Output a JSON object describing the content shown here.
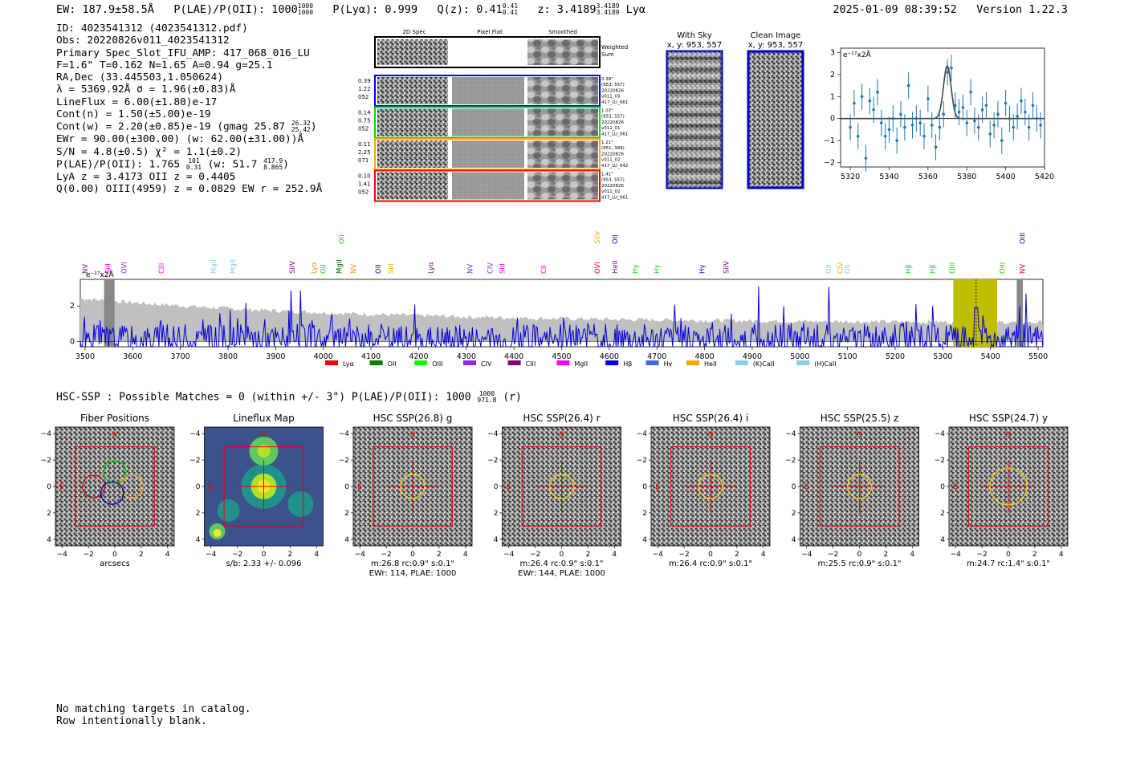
{
  "header": {
    "ew": "EW: 187.9±58.5Å",
    "plae": "P(LAE)/P(OII): 1000",
    "plae_hi": "1000",
    "plae_lo": "1000",
    "plya": "P(Lyα): 0.999",
    "qz": "Q(z): 0.41",
    "qz_hi": "0.41",
    "qz_lo": "0.41",
    "z": "z: 3.4189",
    "z_hi": "3.4189",
    "z_lo": "3.4189",
    "z_line": "Lyα",
    "timestamp": "2025-01-09 08:39:52",
    "version": "Version 1.22.3"
  },
  "info": {
    "id": "ID: 4023541312 (4023541312.pdf)",
    "obs": "Obs: 20220826v011_4023541312",
    "primary": "Primary Spec_Slot_IFU_AMP: 417_068_016_LU",
    "params": "F=1.6\"  T=0.162  N=1.65  A=0.94  g=25.1",
    "radec": "RA,Dec (33.445503,1.050624)",
    "lambda": "λ = 5369.92Å  σ = 1.96(±0.83)Å",
    "lineflux": "LineFlux = 6.00(±1.80)e-17",
    "contn": "Cont(n) = 1.50(±5.00)e-19",
    "contw": "Cont(w) = 2.20(±0.85)e-19 (gmag 25.87",
    "contw_hi": "26.32",
    "contw_lo": "25.42",
    "contw_end": ")",
    "ewr": "EWr = 90.00(±300.00) (w: 62.00(±31.00))Å",
    "sn": "S/N = 4.8(±0.5)  χ² = 1.1(±0.2)",
    "plae": "P(LAE)/P(OII): 1.765",
    "plae_hi": "101",
    "plae_lo": "0.31",
    "plae_w": "(w: 51.7",
    "plae_w_hi": "417.9",
    "plae_w_lo": "8.865",
    "plae_end": ")",
    "lya": "LyA z = 3.4173  OII z = 0.4405",
    "q": "Q(0.00) OIII(4959) z = 0.0829  EW r = 252.9Å"
  },
  "cutouts": {
    "col_headers": [
      "2D Spec",
      "Pixel Flat",
      "Smoothed"
    ],
    "weighted_label": "Weighted\nSum",
    "rows": [
      {
        "left": [
          "0.39",
          "1.22",
          "052"
        ],
        "right": [
          "0.38\"",
          "(953, 557)",
          "20220826",
          "v011_03",
          "417_LU_061"
        ],
        "color": "#0000ff"
      },
      {
        "left": [
          "0.14",
          "0.75",
          "052"
        ],
        "right": [
          "1.07\"",
          "(953, 557)",
          "20220826",
          "v011_01",
          "417_LU_061"
        ],
        "color": "#00dd00"
      },
      {
        "left": [
          "0.11",
          "2.25",
          "071"
        ],
        "right": [
          "1.21\"",
          "(951, 389)",
          "20220826",
          "v011_02",
          "417_LU_042"
        ],
        "color": "#ffa500"
      },
      {
        "left": [
          "0.10",
          "1.41",
          "052"
        ],
        "right": [
          "1.41\"",
          "(953, 557)",
          "20220826",
          "v011_02",
          "417_LU_061"
        ],
        "color": "#ff0000"
      }
    ]
  },
  "sky_panels": {
    "with_sky_title": "With Sky",
    "with_sky_coords": "x, y: 953, 557",
    "clean_title": "Clean Image",
    "clean_coords": "x, y: 953, 557"
  },
  "zoom_spec": {
    "unit_label": "e⁻¹⁷x2Å",
    "x_ticks": [
      "5320",
      "5340",
      "5360",
      "5380",
      "5400",
      "5420"
    ],
    "y_ticks": [
      "3",
      "2",
      "1",
      "0",
      "−1",
      "−2"
    ]
  },
  "full_spec": {
    "unit_label": "e⁻¹⁷x2Å",
    "x_ticks": [
      "3500",
      "3600",
      "3700",
      "3800",
      "3900",
      "4000",
      "4100",
      "4200",
      "4300",
      "4400",
      "4500",
      "4600",
      "4700",
      "4800",
      "4900",
      "5000",
      "5100",
      "5200",
      "5300",
      "5400",
      "5500"
    ],
    "y_ticks": [
      "2",
      "0"
    ],
    "line_labels": [
      {
        "t": "NV",
        "x": 3500,
        "c": "#8b008b",
        "up": false
      },
      {
        "t": "SiII",
        "x": 3548,
        "c": "#ff00ff",
        "up": false
      },
      {
        "t": "OVI",
        "x": 3582,
        "c": "#8a2be2",
        "up": false
      },
      {
        "t": "CIII",
        "x": 3660,
        "c": "#ff00ff",
        "up": false
      },
      {
        "t": "MgII",
        "x": 3770,
        "c": "#87ceeb",
        "up": false
      },
      {
        "t": "MgII",
        "x": 3810,
        "c": "#87ceeb",
        "up": false
      },
      {
        "t": "SiIV",
        "x": 3935,
        "c": "#8b008b",
        "up": false
      },
      {
        "t": "Lyα",
        "x": 3980,
        "c": "#ff8c00",
        "up": false
      },
      {
        "t": "OII",
        "x": 4000,
        "c": "#00cc00",
        "up": false
      },
      {
        "t": "MgII",
        "x": 4033,
        "c": "#006400",
        "up": false
      },
      {
        "t": "OII",
        "x": 4038,
        "c": "#00dd00",
        "up": true
      },
      {
        "t": "NV",
        "x": 4063,
        "c": "#ff8c00",
        "up": false
      },
      {
        "t": "OII",
        "x": 4115,
        "c": "#0000ff",
        "up": false
      },
      {
        "t": "SiII",
        "x": 4142,
        "c": "#ffa500",
        "up": false
      },
      {
        "t": "Lyα",
        "x": 4225,
        "c": "#8b008b",
        "up": false
      },
      {
        "t": "NV",
        "x": 4308,
        "c": "#8a2be2",
        "up": false
      },
      {
        "t": "CIV",
        "x": 4350,
        "c": "#8a2be2",
        "up": false
      },
      {
        "t": "SiII",
        "x": 4375,
        "c": "#ff00ff",
        "up": false
      },
      {
        "t": "CII",
        "x": 4462,
        "c": "#ff00ff",
        "up": false
      },
      {
        "t": "SiIV",
        "x": 4575,
        "c": "#ffa500",
        "up": true
      },
      {
        "t": "OVI",
        "x": 4575,
        "c": "#ff0000",
        "up": false
      },
      {
        "t": "OII",
        "x": 4612,
        "c": "#0000ff",
        "up": true
      },
      {
        "t": "HeII",
        "x": 4612,
        "c": "#8b008b",
        "up": false
      },
      {
        "t": "Hγ",
        "x": 4655,
        "c": "#00dd00",
        "up": false
      },
      {
        "t": "Hγ",
        "x": 4700,
        "c": "#00dd00",
        "up": false
      },
      {
        "t": "Hγ",
        "x": 4795,
        "c": "#0000cd",
        "up": false
      },
      {
        "t": "SiIV",
        "x": 4845,
        "c": "#8b008b",
        "up": false
      },
      {
        "t": "OII",
        "x": 5060,
        "c": "#87ceeb",
        "up": false
      },
      {
        "t": "CIV",
        "x": 5085,
        "c": "#ffa500",
        "up": false
      },
      {
        "t": "OII",
        "x": 5100,
        "c": "#87ceeb",
        "up": false
      },
      {
        "t": "Hβ",
        "x": 5228,
        "c": "#00dd00",
        "up": false
      },
      {
        "t": "Hβ",
        "x": 5278,
        "c": "#00dd00",
        "up": false
      },
      {
        "t": "OIII",
        "x": 5320,
        "c": "#00dd00",
        "up": false
      },
      {
        "t": "OIII",
        "x": 5425,
        "c": "#00dd00",
        "up": false
      },
      {
        "t": "OIII",
        "x": 5467,
        "c": "#0000ff",
        "up": true
      },
      {
        "t": "NV",
        "x": 5467,
        "c": "#ff0000",
        "up": false
      }
    ],
    "legend": [
      {
        "t": "Lyα",
        "c": "#ff0000"
      },
      {
        "t": "OII",
        "c": "#008000"
      },
      {
        "t": "OIII",
        "c": "#00ff00"
      },
      {
        "t": "CIV",
        "c": "#8a2be2"
      },
      {
        "t": "CIII",
        "c": "#800080"
      },
      {
        "t": "MgII",
        "c": "#ff00ff"
      },
      {
        "t": "Hβ",
        "c": "#0000ff"
      },
      {
        "t": "Hγ",
        "c": "#4169e1"
      },
      {
        "t": "HeII",
        "c": "#ffa500"
      },
      {
        "t": "(K)CaII",
        "c": "#87ceeb"
      },
      {
        "t": "(H)CaII",
        "c": "#87ceeb"
      }
    ]
  },
  "hsc": {
    "title": "HSC-SSP : Possible Matches = 0 (within +/- 3\")  P(LAE)/P(OII): 1000",
    "title_hi": "1000",
    "title_lo": "971.8",
    "title_end": "(r)",
    "panels": [
      {
        "title": "Fiber Positions",
        "cap1": "arcsecs",
        "cap2": ""
      },
      {
        "title": "Lineflux Map",
        "cap1": "s/b: 2.33 +/- 0.096",
        "cap2": ""
      },
      {
        "title": "HSC SSP(26.8) g",
        "cap1": "m:26.8 rc:0.9\"  s:0.1\"",
        "cap2": "EWr: 114, PLAE: 1000"
      },
      {
        "title": "HSC SSP(26.4) r",
        "cap1": "m:26.4 rc:0.9\"  s:0.1\"",
        "cap2": "EWr: 144, PLAE: 1000"
      },
      {
        "title": "HSC SSP(26.4) i",
        "cap1": "m:26.4 rc:0.9\"  s:0.1\"",
        "cap2": ""
      },
      {
        "title": "HSC SSP(25.5) z",
        "cap1": "m:25.5 rc:0.9\"  s:0.1\"",
        "cap2": ""
      },
      {
        "title": "HSC SSP(24.7) y",
        "cap1": "m:24.7 rc:1.4\"  s:0.1\"",
        "cap2": ""
      }
    ],
    "axis_ticks": [
      "−4",
      "−2",
      "0",
      "2",
      "4"
    ],
    "n_label": "N",
    "e_label": "E"
  },
  "footer": {
    "line1": "No matching targets in catalog.",
    "line2": "Row intentionally blank."
  },
  "chart_data": [
    {
      "type": "scatter",
      "title": "",
      "xlabel": "",
      "ylabel": "e-17 x2Å",
      "xlim": [
        5315,
        5420
      ],
      "ylim": [
        -2.2,
        3.2
      ],
      "x": [
        5320,
        5322,
        5324,
        5326,
        5328,
        5330,
        5332,
        5334,
        5336,
        5338,
        5340,
        5342,
        5344,
        5346,
        5348,
        5350,
        5352,
        5354,
        5356,
        5358,
        5360,
        5362,
        5364,
        5366,
        5368,
        5370,
        5372,
        5374,
        5376,
        5378,
        5380,
        5382,
        5384,
        5386,
        5388,
        5390,
        5392,
        5394,
        5396,
        5398,
        5400,
        5402,
        5404,
        5406,
        5408,
        5410,
        5412,
        5414,
        5416,
        5418
      ],
      "y": [
        -0.4,
        0.7,
        -0.8,
        1.0,
        -1.8,
        0.8,
        0.4,
        1.2,
        -0.2,
        -0.8,
        -0.5,
        0.0,
        -1.0,
        0.2,
        -0.4,
        1.5,
        -0.3,
        0.0,
        -0.2,
        -0.8,
        0.9,
        -0.3,
        -1.3,
        -0.4,
        0.2,
        2.1,
        2.3,
        0.6,
        0.3,
        0.5,
        -0.2,
        1.2,
        -0.1,
        -0.4,
        0.4,
        0.6,
        -0.7,
        -0.3,
        0.2,
        -1.0,
        0.7,
        0.0,
        -0.4,
        0.1,
        0.8,
        0.3,
        -0.4,
        0.6,
        0.0,
        -0.3
      ],
      "err": [
        0.6,
        0.6,
        0.6,
        0.6,
        0.6,
        0.6,
        0.6,
        0.6,
        0.6,
        0.6,
        0.6,
        0.6,
        0.6,
        0.6,
        0.6,
        0.6,
        0.6,
        0.6,
        0.6,
        0.6,
        0.6,
        0.6,
        0.6,
        0.6,
        0.6,
        0.6,
        0.6,
        0.6,
        0.6,
        0.6,
        0.6,
        0.6,
        0.6,
        0.6,
        0.6,
        0.6,
        0.6,
        0.6,
        0.6,
        0.6,
        0.6,
        0.6,
        0.6,
        0.6,
        0.6,
        0.6,
        0.6,
        0.6,
        0.6,
        0.6
      ],
      "fit": {
        "type": "gaussian",
        "center": 5369.92,
        "sigma": 1.96,
        "amplitude": 2.4
      }
    },
    {
      "type": "line",
      "title": "",
      "xlabel": "",
      "ylabel": "e-17 x2Å",
      "xlim": [
        3490,
        5510
      ],
      "ylim": [
        -0.3,
        3.5
      ],
      "highlight_band": [
        5322,
        5414
      ],
      "marker_line": 5369.92,
      "series": [
        {
          "name": "flux",
          "color": "#0000dd"
        },
        {
          "name": "error",
          "color": "#b0b0b0"
        }
      ]
    }
  ]
}
